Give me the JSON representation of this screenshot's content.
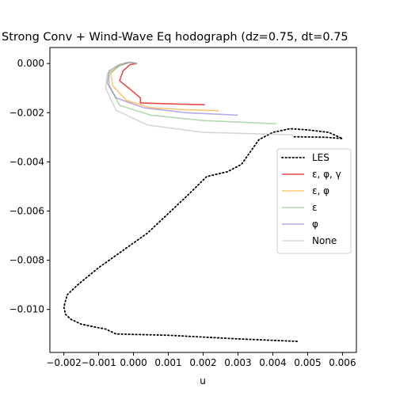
{
  "chart_data": {
    "type": "line",
    "title": "Strong Conv + Wind-Wave Eq hodograph (dz=0.75, dt=0.75",
    "xlabel": "u",
    "ylabel": "",
    "xlim": [
      -0.0024,
      0.0064
    ],
    "ylim": [
      -0.01175,
      0.00065
    ],
    "grid": false,
    "legend_position": "right",
    "xticks": [
      -0.002,
      -0.001,
      0.0,
      0.001,
      0.002,
      0.003,
      0.004,
      0.005,
      0.006
    ],
    "xtick_labels": [
      "−0.002",
      "−0.001",
      "0.000",
      "0.001",
      "0.002",
      "0.003",
      "0.004",
      "0.005",
      "0.006"
    ],
    "yticks": [
      0.0,
      -0.002,
      -0.004,
      -0.006,
      -0.008,
      -0.01
    ],
    "ytick_labels": [
      "0.000",
      "−0.002",
      "−0.004",
      "−0.006",
      "−0.008",
      "−0.010"
    ],
    "series": [
      {
        "name": "LES",
        "color": "#000000",
        "dash": "dotted",
        "opacity": 1,
        "points": [
          [
            0.0047,
            -0.0113
          ],
          [
            0.003,
            -0.0112
          ],
          [
            0.001,
            -0.01105
          ],
          [
            -0.0005,
            -0.011
          ],
          [
            -0.0008,
            -0.0108
          ],
          [
            -0.0011,
            -0.01072
          ],
          [
            -0.0015,
            -0.0106
          ],
          [
            -0.0018,
            -0.0104
          ],
          [
            -0.00195,
            -0.0102
          ],
          [
            -0.002,
            -0.0099
          ],
          [
            -0.0019,
            -0.0094
          ],
          [
            -0.0016,
            -0.009
          ],
          [
            -0.001,
            -0.0083
          ],
          [
            -0.0003,
            -0.0076
          ],
          [
            0.0004,
            -0.0069
          ],
          [
            0.001,
            -0.0061
          ],
          [
            0.0016,
            -0.0053
          ],
          [
            0.0021,
            -0.0046
          ],
          [
            0.0027,
            -0.0044
          ],
          [
            0.0031,
            -0.0041
          ],
          [
            0.0033,
            -0.0037
          ],
          [
            0.0036,
            -0.0031
          ],
          [
            0.004,
            -0.0028
          ],
          [
            0.0045,
            -0.00265
          ],
          [
            0.005,
            -0.0027
          ],
          [
            0.0056,
            -0.0028
          ],
          [
            0.006,
            -0.00305
          ],
          [
            0.0055,
            -0.003
          ],
          [
            0.0046,
            -0.00298
          ]
        ]
      },
      {
        "name": "ε, φ, γ",
        "color": "#e41a1c",
        "dash": "solid",
        "opacity": 0.8,
        "points": [
          [
            0.00205,
            -0.00168
          ],
          [
            0.001,
            -0.00164
          ],
          [
            0.0002,
            -0.0016
          ],
          [
            0.0002,
            -0.0014
          ],
          [
            -5e-05,
            -0.0011
          ],
          [
            -0.0004,
            -0.0007
          ],
          [
            -0.0003,
            -0.0003
          ],
          [
            -0.0001,
            -5e-05
          ],
          [
            0.0001,
            0.0
          ]
        ]
      },
      {
        "name": "ε, φ",
        "color": "#ff9900",
        "dash": "solid",
        "opacity": 0.55,
        "points": [
          [
            0.00245,
            -0.00192
          ],
          [
            0.0015,
            -0.00188
          ],
          [
            0.0005,
            -0.0018
          ],
          [
            -0.0002,
            -0.0015
          ],
          [
            -0.0006,
            -0.0009
          ],
          [
            -0.00065,
            -0.0004
          ],
          [
            -0.0004,
            -5e-05
          ],
          [
            -0.0001,
            5e-05
          ],
          [
            0.0001,
            0.0
          ]
        ]
      },
      {
        "name": "ε",
        "color": "#4daf4a",
        "dash": "solid",
        "opacity": 0.45,
        "points": [
          [
            0.0041,
            -0.00245
          ],
          [
            0.002,
            -0.00232
          ],
          [
            0.0005,
            -0.0021
          ],
          [
            -0.0004,
            -0.0017
          ],
          [
            -0.0007,
            -0.0009
          ],
          [
            -0.0007,
            -0.0004
          ],
          [
            -0.0004,
            -0.0001
          ],
          [
            -0.0001,
            5e-05
          ],
          [
            0.0001,
            0.0
          ]
        ]
      },
      {
        "name": "φ",
        "color": "#6a5acd",
        "dash": "solid",
        "opacity": 0.5,
        "points": [
          [
            0.003,
            -0.0021
          ],
          [
            0.0015,
            -0.002
          ],
          [
            0.0003,
            -0.0018
          ],
          [
            -0.0005,
            -0.0014
          ],
          [
            -0.00075,
            -0.0008
          ],
          [
            -0.0007,
            -0.0003
          ],
          [
            -0.0004,
            -5e-05
          ],
          [
            -0.0001,
            5e-05
          ],
          [
            0.0001,
            0.0
          ]
        ]
      },
      {
        "name": "None",
        "color": "#bbbbbb",
        "dash": "solid",
        "opacity": 0.6,
        "points": [
          [
            0.0046,
            -0.0029
          ],
          [
            0.002,
            -0.0028
          ],
          [
            0.0004,
            -0.0025
          ],
          [
            -0.0005,
            -0.0019
          ],
          [
            -0.0008,
            -0.001
          ],
          [
            -0.00075,
            -0.0004
          ],
          [
            -0.0005,
            -0.0001
          ],
          [
            -0.0002,
            5e-05
          ],
          [
            0.0001,
            0.0
          ]
        ]
      }
    ]
  }
}
